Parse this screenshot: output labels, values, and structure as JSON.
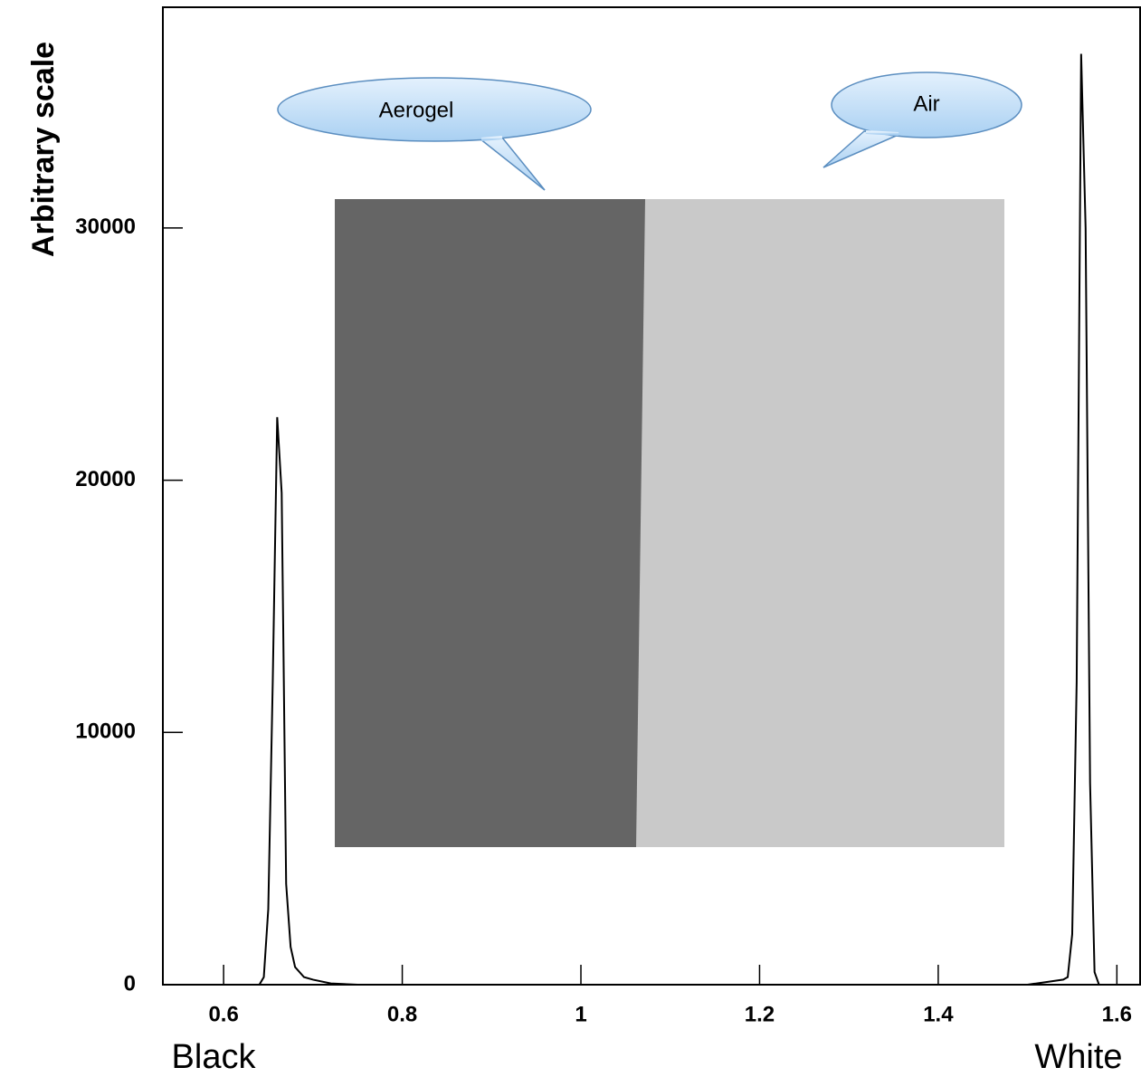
{
  "chart_data": {
    "type": "line",
    "y_label": "Arbitrary scale",
    "annotations": [
      "Aerogel",
      "Air",
      "Black",
      "White"
    ],
    "x": [
      0.55,
      0.6,
      0.64,
      0.645,
      0.65,
      0.655,
      0.66,
      0.665,
      0.67,
      0.675,
      0.68,
      0.69,
      0.7,
      0.72,
      0.75,
      0.8,
      1.0,
      1.2,
      1.4,
      1.5,
      1.52,
      1.54,
      1.545,
      1.55,
      1.555,
      1.56,
      1.565,
      1.57,
      1.575,
      1.58,
      1.6
    ],
    "series": [
      {
        "color": "#000000",
        "values": [
          0,
          0,
          0,
          300,
          3000,
          12000,
          22500,
          19500,
          4000,
          1500,
          700,
          300,
          200,
          50,
          0,
          0,
          0,
          0,
          0,
          0,
          100,
          200,
          300,
          2000,
          12000,
          36900,
          30000,
          8000,
          500,
          0,
          0
        ]
      }
    ],
    "xlim": [
      0.532,
      1.626
    ],
    "ylim": [
      0,
      38750
    ],
    "xticks": [
      0.6,
      0.8,
      1,
      1.2,
      1.4,
      1.6
    ],
    "yticks": [
      0,
      10000,
      20000,
      30000
    ]
  }
}
